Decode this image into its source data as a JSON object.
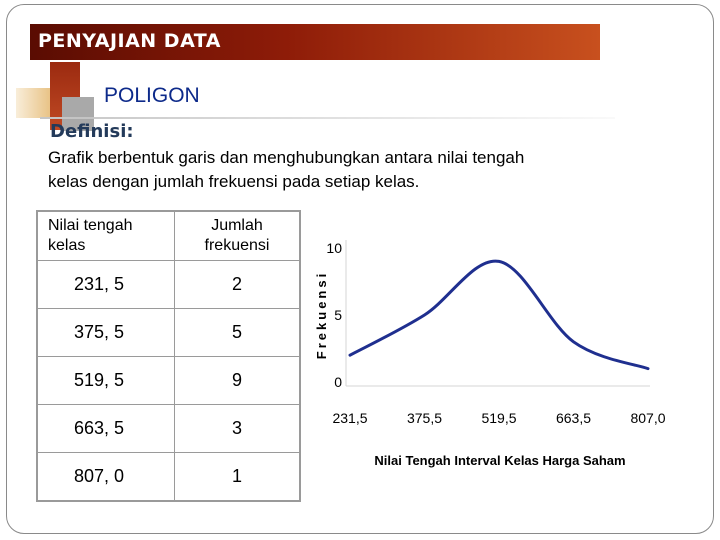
{
  "header": {
    "title": "PENYAJIAN  DATA",
    "subtitle": "POLIGON"
  },
  "definition": {
    "label": "Definisi:",
    "text_line1": "Grafik berbentuk garis dan menghubungkan antara nilai tengah",
    "text_line2": "kelas dengan jumlah frekuensi pada setiap kelas."
  },
  "table": {
    "headers": [
      {
        "line1": "Nilai tengah",
        "line2": "kelas"
      },
      {
        "line1": "Jumlah",
        "line2": "frekuensi"
      }
    ],
    "rows": [
      [
        "231, 5",
        "2"
      ],
      [
        "375, 5",
        "5"
      ],
      [
        "519, 5",
        "9"
      ],
      [
        "663, 5",
        "3"
      ],
      [
        "807, 0",
        "1"
      ]
    ]
  },
  "colors": {
    "line": "#1f2f8f",
    "title_bar": "#8e1c08",
    "subtitle": "#0d2a8a"
  },
  "chart_data": {
    "type": "line",
    "x": [
      231.5,
      375.5,
      519.5,
      663.5,
      807.0
    ],
    "values": [
      2,
      5,
      9,
      3,
      1
    ],
    "x_tick_labels": [
      "231,5",
      "375,5",
      "519,5",
      "663,5",
      "807,0"
    ],
    "y_tick_labels": [
      "0",
      "5",
      "10"
    ],
    "ylim": [
      0,
      10
    ],
    "xlabel": "Nilai Tengah Interval Kelas Harga Saham",
    "ylabel": "Frekuensi",
    "smooth": true,
    "grid": false,
    "legend": "none"
  }
}
